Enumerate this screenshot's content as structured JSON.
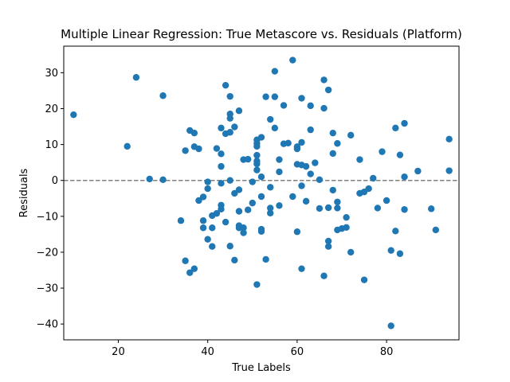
{
  "chart_data": {
    "type": "scatter",
    "title": "Multiple Linear Regression: True Metascore vs. Residuals (Platform)",
    "xlabel": "True Labels",
    "ylabel": "Residuals",
    "xlim": [
      7.8,
      96.2
    ],
    "ylim": [
      -44.4,
      37.4
    ],
    "xticks": [
      20,
      40,
      60,
      80
    ],
    "yticks": [
      -40,
      -30,
      -20,
      -10,
      0,
      10,
      20,
      30
    ],
    "reference_line": {
      "y": 0,
      "style": "dashed",
      "color": "#808080"
    },
    "marker_color": "#1f77b4",
    "grid": false,
    "points": [
      [
        10,
        18.3
      ],
      [
        22,
        9.5
      ],
      [
        24,
        28.7
      ],
      [
        27,
        0.4
      ],
      [
        30,
        23.6
      ],
      [
        30,
        0.2
      ],
      [
        34,
        -11.2
      ],
      [
        35,
        8.3
      ],
      [
        35,
        -22.4
      ],
      [
        36,
        13.9
      ],
      [
        36,
        -25.7
      ],
      [
        37,
        13.2
      ],
      [
        37,
        9.4
      ],
      [
        37,
        -24.6
      ],
      [
        38,
        8.8
      ],
      [
        38,
        -5.6
      ],
      [
        39,
        -4.6
      ],
      [
        39,
        -11.2
      ],
      [
        39,
        -13.2
      ],
      [
        40,
        -0.4
      ],
      [
        40,
        -2.3
      ],
      [
        40,
        -16.4
      ],
      [
        41,
        -13.2
      ],
      [
        41,
        -9.8
      ],
      [
        41,
        -18.4
      ],
      [
        42,
        8.9
      ],
      [
        42,
        -9.2
      ],
      [
        43,
        14.6
      ],
      [
        43,
        7.4
      ],
      [
        43,
        3.9
      ],
      [
        43,
        -0.8
      ],
      [
        43,
        -6.9
      ],
      [
        43,
        -8.0
      ],
      [
        44,
        26.5
      ],
      [
        44,
        13.0
      ],
      [
        44,
        -11.6
      ],
      [
        45,
        23.4
      ],
      [
        45,
        18.5
      ],
      [
        45,
        17.3
      ],
      [
        45,
        13.4
      ],
      [
        45,
        0.0
      ],
      [
        45,
        -18.3
      ],
      [
        46,
        14.9
      ],
      [
        46,
        -3.6
      ],
      [
        46,
        -22.2
      ],
      [
        47,
        19.4
      ],
      [
        47,
        -2.6
      ],
      [
        47,
        -8.6
      ],
      [
        47,
        -12.6
      ],
      [
        47,
        -13.2
      ],
      [
        48,
        5.8
      ],
      [
        48,
        -13.2
      ],
      [
        48,
        -14.6
      ],
      [
        49,
        5.9
      ],
      [
        49,
        -8.2
      ],
      [
        50,
        -0.4
      ],
      [
        50,
        -6.3
      ],
      [
        51,
        11.3
      ],
      [
        51,
        10.3
      ],
      [
        51,
        9.5
      ],
      [
        51,
        7.0
      ],
      [
        51,
        5.4
      ],
      [
        51,
        4.6
      ],
      [
        51,
        2.9
      ],
      [
        51,
        -29.0
      ],
      [
        52,
        12.0
      ],
      [
        52,
        1.0
      ],
      [
        52,
        -4.5
      ],
      [
        52,
        -13.6
      ],
      [
        52,
        -14.2
      ],
      [
        53,
        23.3
      ],
      [
        53,
        -22.0
      ],
      [
        54,
        17.0
      ],
      [
        54,
        -1.9
      ],
      [
        54,
        -7.7
      ],
      [
        54,
        -9.1
      ],
      [
        55,
        30.4
      ],
      [
        55,
        23.3
      ],
      [
        55,
        14.6
      ],
      [
        56,
        5.8
      ],
      [
        56,
        2.4
      ],
      [
        56,
        -7.0
      ],
      [
        57,
        20.9
      ],
      [
        57,
        10.2
      ],
      [
        58,
        10.4
      ],
      [
        59,
        33.5
      ],
      [
        59,
        -4.5
      ],
      [
        60,
        9.4
      ],
      [
        60,
        8.8
      ],
      [
        60,
        4.5
      ],
      [
        60,
        -14.3
      ],
      [
        61,
        22.9
      ],
      [
        61,
        10.6
      ],
      [
        61,
        4.3
      ],
      [
        61,
        -1.5
      ],
      [
        61,
        -24.6
      ],
      [
        62,
        3.9
      ],
      [
        62,
        -5.8
      ],
      [
        63,
        20.8
      ],
      [
        63,
        14.1
      ],
      [
        63,
        1.8
      ],
      [
        64,
        4.9
      ],
      [
        65,
        0.2
      ],
      [
        65,
        -7.8
      ],
      [
        66,
        28.0
      ],
      [
        66,
        20.1
      ],
      [
        66,
        -26.6
      ],
      [
        67,
        25.2
      ],
      [
        67,
        -7.6
      ],
      [
        67,
        -16.9
      ],
      [
        67,
        -18.4
      ],
      [
        68,
        13.2
      ],
      [
        68,
        7.5
      ],
      [
        68,
        -2.7
      ],
      [
        69,
        10.3
      ],
      [
        69,
        -6.0
      ],
      [
        69,
        -7.7
      ],
      [
        69,
        -13.8
      ],
      [
        70,
        -13.4
      ],
      [
        71,
        -10.3
      ],
      [
        71,
        -13.1
      ],
      [
        72,
        12.6
      ],
      [
        72,
        -20.0
      ],
      [
        74,
        5.8
      ],
      [
        74,
        -3.6
      ],
      [
        75,
        -3.2
      ],
      [
        75,
        -27.7
      ],
      [
        76,
        -2.3
      ],
      [
        77,
        0.6
      ],
      [
        78,
        -7.7
      ],
      [
        79,
        8.0
      ],
      [
        80,
        -5.6
      ],
      [
        81,
        -19.5
      ],
      [
        81,
        -40.5
      ],
      [
        82,
        14.6
      ],
      [
        82,
        -14.1
      ],
      [
        83,
        7.1
      ],
      [
        83,
        -20.4
      ],
      [
        84,
        15.9
      ],
      [
        84,
        1.0
      ],
      [
        84,
        -8.1
      ],
      [
        87,
        2.6
      ],
      [
        90,
        -7.9
      ],
      [
        91,
        -13.8
      ],
      [
        94,
        11.5
      ],
      [
        94,
        2.7
      ]
    ]
  }
}
